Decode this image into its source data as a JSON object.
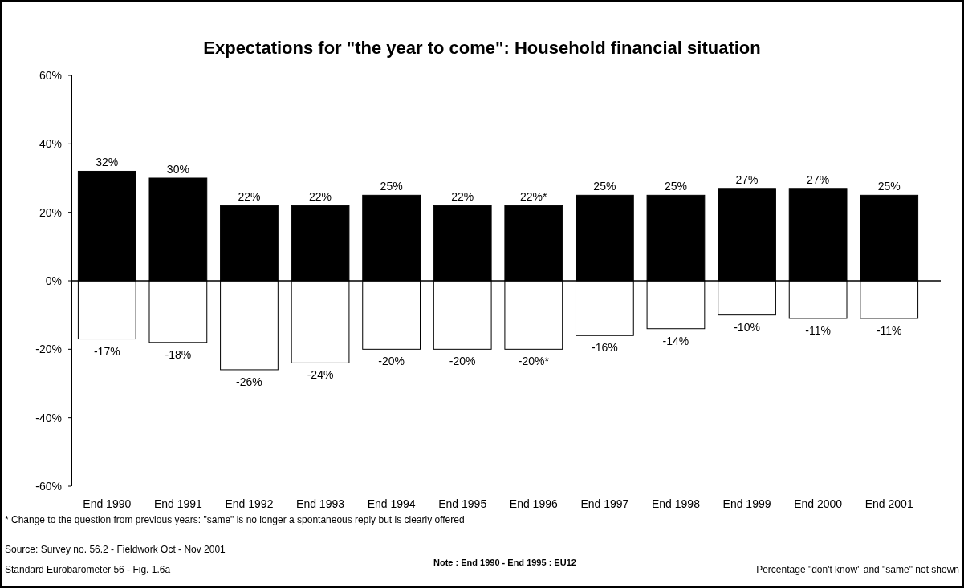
{
  "chart_data": {
    "type": "bar",
    "title": "Expectations for \"the year to come\": Household financial situation",
    "categories": [
      "End 1990",
      "End 1991",
      "End 1992",
      "End 1993",
      "End 1994",
      "End 1995",
      "End 1996",
      "End 1997",
      "End 1998",
      "End 1999",
      "End 2000",
      "End 2001"
    ],
    "series": [
      {
        "type": "bar",
        "color": "#000000",
        "values": [
          32,
          30,
          22,
          22,
          25,
          22,
          22,
          25,
          25,
          27,
          27,
          25
        ],
        "value_labels": [
          "32%",
          "30%",
          "22%",
          "22%",
          "25%",
          "22%",
          "22%*",
          "25%",
          "25%",
          "27%",
          "27%",
          "25%"
        ]
      },
      {
        "type": "bar",
        "color": "#ffffff",
        "values": [
          -17,
          -18,
          -26,
          -24,
          -20,
          -20,
          -20,
          -16,
          -14,
          -10,
          -11,
          -11
        ],
        "value_labels": [
          "-17%",
          "-18%",
          "-26%",
          "-24%",
          "-20%",
          "-20%",
          "-20%*",
          "-16%",
          "-14%",
          "-10%",
          "-11%",
          "-11%"
        ]
      }
    ],
    "ylim": [
      -60,
      60
    ],
    "yticks": [
      {
        "value": -60,
        "label": "-60%"
      },
      {
        "value": -40,
        "label": "-40%"
      },
      {
        "value": -20,
        "label": "-20%"
      },
      {
        "value": 0,
        "label": "0%"
      },
      {
        "value": 20,
        "label": "20%"
      },
      {
        "value": 40,
        "label": "40%"
      },
      {
        "value": 60,
        "label": "60%"
      }
    ],
    "stacked": true,
    "annotations": [
      "* Change to the question from previous years: \"same\" is no longer a spontaneous reply but is clearly offered",
      "Source: Survey no. 56.2 -  Fieldwork Oct - Nov 2001",
      "Standard Eurobarometer 56 - Fig. 1.6a",
      "Note : End 1990 - End 1995 : EU12",
      "Percentage \"don't know\" and \"same\" not shown"
    ]
  }
}
